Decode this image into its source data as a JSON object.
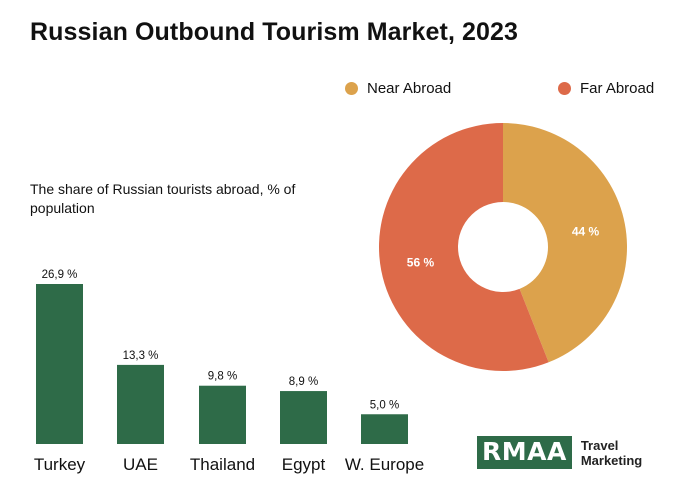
{
  "header": {
    "title": "Russian Outbound Tourism Market, 2023"
  },
  "chart_data": [
    {
      "type": "bar",
      "title": "The share of Russian tourists abroad, % of population",
      "categories": [
        "Turkey",
        "UAE",
        "Thailand",
        "Egypt",
        "W. Europe"
      ],
      "values": [
        26.9,
        13.3,
        9.8,
        8.9,
        5.0
      ],
      "value_labels": [
        "26,9 %",
        "13,3 %",
        "9,8 %",
        "8,9 %",
        "5,0 %"
      ],
      "bar_color": "#2e6b48",
      "ylim": [
        0,
        30
      ],
      "grid": false
    },
    {
      "type": "pie",
      "style": "donut",
      "slices": [
        {
          "name": "Near Abroad",
          "value": 44,
          "label": "44 %",
          "color": "#dca24c"
        },
        {
          "name": "Far Abroad",
          "value": 56,
          "label": "56 %",
          "color": "#dd6a49"
        }
      ],
      "legend_position": "top"
    }
  ],
  "branding": {
    "logo_text": "RMAA",
    "logo_line1": "Travel",
    "logo_line2": "Marketing",
    "logo_color": "#2e6b48"
  }
}
